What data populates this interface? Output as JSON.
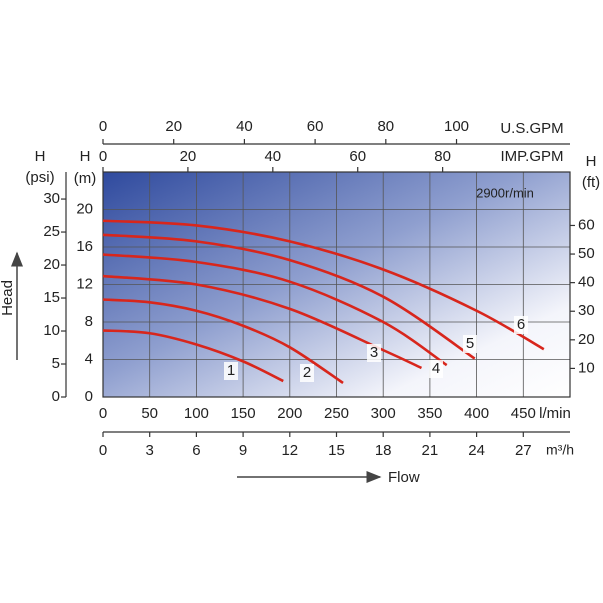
{
  "chart_data": {
    "type": "line",
    "x_label": "Flow",
    "y_label": "Head",
    "annotation": "2900r/min",
    "x_unit": "l/min",
    "xlim": [
      0,
      500
    ],
    "xticks": [
      0,
      50,
      100,
      150,
      200,
      250,
      300,
      350,
      400,
      450
    ],
    "y_symbol": "H",
    "y_unit": "(m)",
    "ylim": [
      0,
      24
    ],
    "yticks": [
      0,
      4,
      8,
      12,
      16,
      20
    ],
    "grid": true,
    "secondary_axes": [
      {
        "unit": "U.S.GPM",
        "side": "top",
        "lim": [
          0,
          132.1
        ],
        "ticks": [
          0,
          20,
          40,
          60,
          80,
          100
        ]
      },
      {
        "unit": "IMP.GPM",
        "side": "top-inner",
        "lim": [
          0,
          110
        ],
        "ticks": [
          0,
          20,
          40,
          60,
          80
        ]
      },
      {
        "unit": "m³/h",
        "side": "bottom",
        "lim": [
          0,
          30
        ],
        "ticks": [
          0,
          3,
          6,
          9,
          12,
          15,
          18,
          21,
          24,
          27
        ]
      },
      {
        "symbol": "H",
        "unit": "(psi)",
        "side": "left",
        "lim": [
          0,
          34.1
        ],
        "ticks": [
          0,
          5,
          10,
          15,
          20,
          25,
          30
        ]
      },
      {
        "symbol": "H",
        "unit": "(ft)",
        "side": "right",
        "lim": [
          0,
          78.7
        ],
        "ticks": [
          10,
          20,
          30,
          40,
          50,
          60
        ]
      }
    ],
    "series": [
      {
        "name": "1",
        "color": "#d8261c",
        "x": [
          0,
          50,
          100,
          150,
          193
        ],
        "values": [
          7.1,
          6.8,
          5.6,
          3.8,
          1.7
        ]
      },
      {
        "name": "2",
        "color": "#d8261c",
        "x": [
          0,
          50,
          100,
          150,
          200,
          257
        ],
        "values": [
          10.4,
          10.1,
          9.2,
          7.6,
          5.3,
          1.5
        ]
      },
      {
        "name": "3",
        "color": "#d8261c",
        "x": [
          0,
          100,
          200,
          300,
          341
        ],
        "values": [
          12.9,
          12.0,
          9.4,
          5.0,
          3.1
        ]
      },
      {
        "name": "4",
        "color": "#d8261c",
        "x": [
          0,
          100,
          200,
          300,
          368
        ],
        "values": [
          15.2,
          14.4,
          12.3,
          8.0,
          3.4
        ]
      },
      {
        "name": "5",
        "color": "#d8261c",
        "x": [
          0,
          100,
          200,
          300,
          398
        ],
        "values": [
          17.3,
          16.6,
          14.6,
          10.7,
          4.1
        ]
      },
      {
        "name": "6",
        "color": "#d8261c",
        "x": [
          0,
          100,
          200,
          300,
          400,
          472
        ],
        "values": [
          18.8,
          18.3,
          16.6,
          13.6,
          9.2,
          5.1
        ]
      }
    ]
  }
}
